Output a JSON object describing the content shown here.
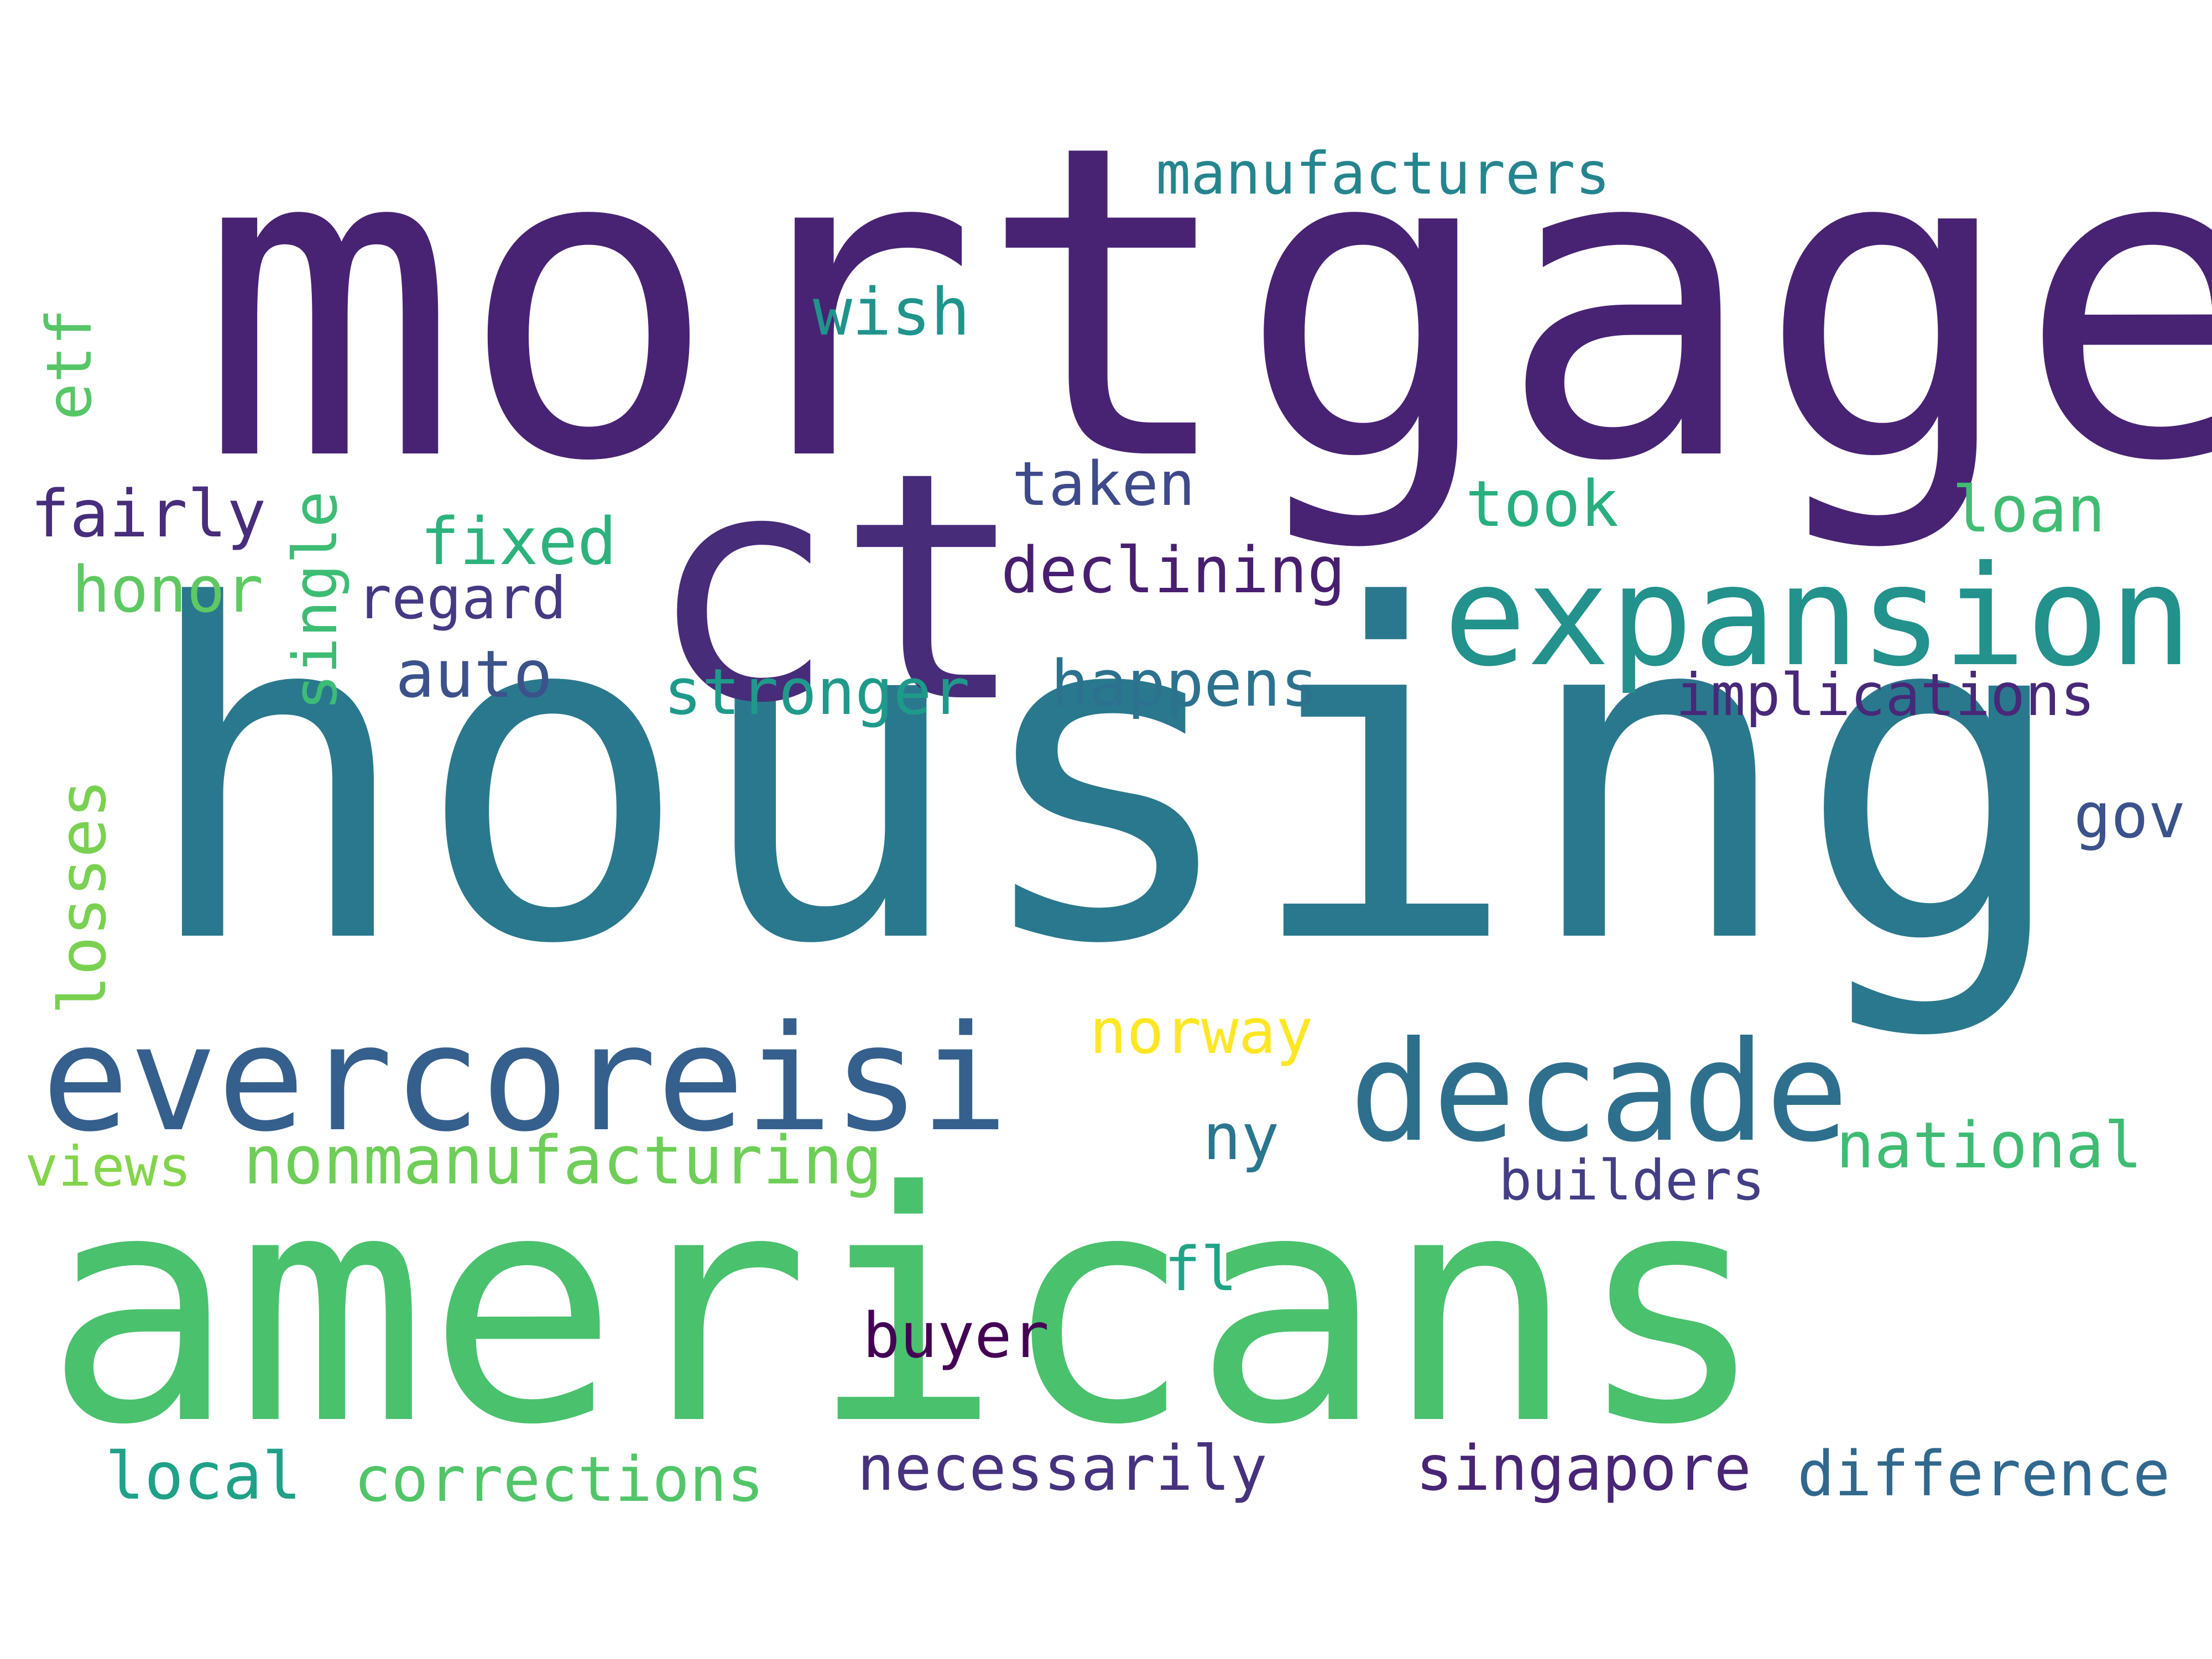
{
  "words": [
    {
      "text": "mortgage",
      "color": "#482374"
    },
    {
      "text": "housing",
      "color": "#2a788e"
    },
    {
      "text": "americans",
      "color": "#4ac16d"
    },
    {
      "text": "ct",
      "color": "#472c7a"
    },
    {
      "text": "expansion",
      "color": "#23918c"
    },
    {
      "text": "evercoreisi",
      "color": "#355f8d"
    },
    {
      "text": "decade",
      "color": "#2e6f8e"
    },
    {
      "text": "manufacturers",
      "color": "#25858e"
    },
    {
      "text": "wish",
      "color": "#1f948c"
    },
    {
      "text": "etf",
      "color": "#56c667"
    },
    {
      "text": "fairly",
      "color": "#472d7b"
    },
    {
      "text": "single",
      "color": "#3dbc74"
    },
    {
      "text": "taken",
      "color": "#3e4a89"
    },
    {
      "text": "took",
      "color": "#29af7f"
    },
    {
      "text": "loan",
      "color": "#40bd72"
    },
    {
      "text": "fixed",
      "color": "#2db27d"
    },
    {
      "text": "declining",
      "color": "#481f70"
    },
    {
      "text": "honor",
      "color": "#5ec962"
    },
    {
      "text": "regard",
      "color": "#443983"
    },
    {
      "text": "auto",
      "color": "#3b528b"
    },
    {
      "text": "stronger",
      "color": "#1f9a8a"
    },
    {
      "text": "happens",
      "color": "#2c728e"
    },
    {
      "text": "implications",
      "color": "#482878"
    },
    {
      "text": "gov",
      "color": "#3b528b"
    },
    {
      "text": "losses",
      "color": "#7ad151"
    },
    {
      "text": "norway",
      "color": "#fde725"
    },
    {
      "text": "ny",
      "color": "#2a768e"
    },
    {
      "text": "national",
      "color": "#3fbc73"
    },
    {
      "text": "views",
      "color": "#84d44b"
    },
    {
      "text": "nonmanufacturing",
      "color": "#6ece58"
    },
    {
      "text": "builders",
      "color": "#433e85"
    },
    {
      "text": "fl",
      "color": "#20a486"
    },
    {
      "text": "buyer",
      "color": "#440154"
    },
    {
      "text": "local",
      "color": "#1fa188"
    },
    {
      "text": "corrections",
      "color": "#52c569"
    },
    {
      "text": "necessarily",
      "color": "#46327e"
    },
    {
      "text": "singapore",
      "color": "#482576"
    },
    {
      "text": "difference",
      "color": "#31688e"
    }
  ]
}
